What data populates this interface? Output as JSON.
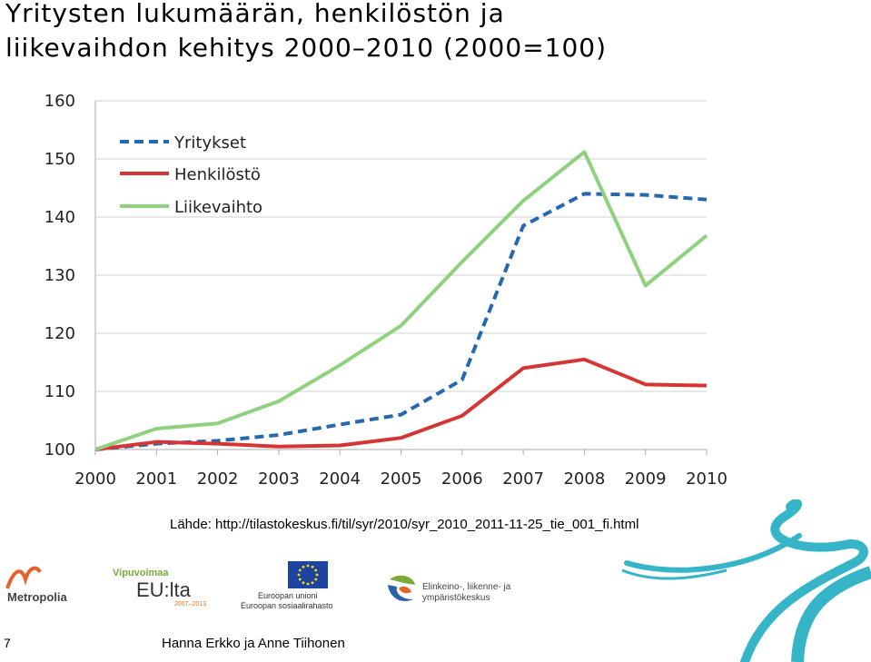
{
  "slide": {
    "title_line1": "Yritysten lukumäärän, henkilöstön ja",
    "title_line2": "liikevaihdon kehitys 2000–2010 (2000=100)",
    "source": "Lähde: http://tilastokeskus.fi/til/syr/2010/syr_2010_2011-11-25_tie_001_fi.html",
    "page_number": "7",
    "author": "Hanna Erkko ja Anne Tiihonen"
  },
  "logos": {
    "metropolia": "Metropolia",
    "vipuvoimaa_top": "Vipuvoimaa",
    "vipuvoimaa_main": "EU:lta",
    "vipuvoimaa_years": "2007–2013",
    "eu_line1": "Euroopan unioni",
    "eu_line2": "Euroopan sosiaalirahasto",
    "ely_line1": "Elinkeino-, liikenne- ja",
    "ely_line2": "ympäristökeskus"
  },
  "chart_data": {
    "type": "line",
    "title": "",
    "xlabel": "",
    "ylabel": "",
    "x": [
      "2000",
      "2001",
      "2002",
      "2003",
      "2004",
      "2005",
      "2006",
      "2007",
      "2008",
      "2009",
      "2010"
    ],
    "ylim": [
      100,
      160
    ],
    "yticks": [
      100,
      110,
      120,
      130,
      140,
      150,
      160
    ],
    "grid": true,
    "legend_position": "top-left",
    "series": [
      {
        "name": "Yritykset",
        "color": "#2468b0",
        "dash": true,
        "values": [
          100,
          101,
          101.5,
          102.5,
          104.3,
          106,
          112,
          138.5,
          144,
          143.8,
          143
        ]
      },
      {
        "name": "Henkilöstö",
        "color": "#d63535",
        "dash": false,
        "values": [
          100,
          101.3,
          101,
          100.5,
          100.7,
          102,
          105.8,
          114,
          115.5,
          111.2,
          111
        ]
      },
      {
        "name": "Liikevaihto",
        "color": "#8fd17e",
        "dash": false,
        "values": [
          100,
          103.6,
          104.5,
          108.3,
          114.5,
          121.3,
          132.3,
          142.8,
          151.2,
          128.2,
          136.8
        ]
      }
    ]
  }
}
